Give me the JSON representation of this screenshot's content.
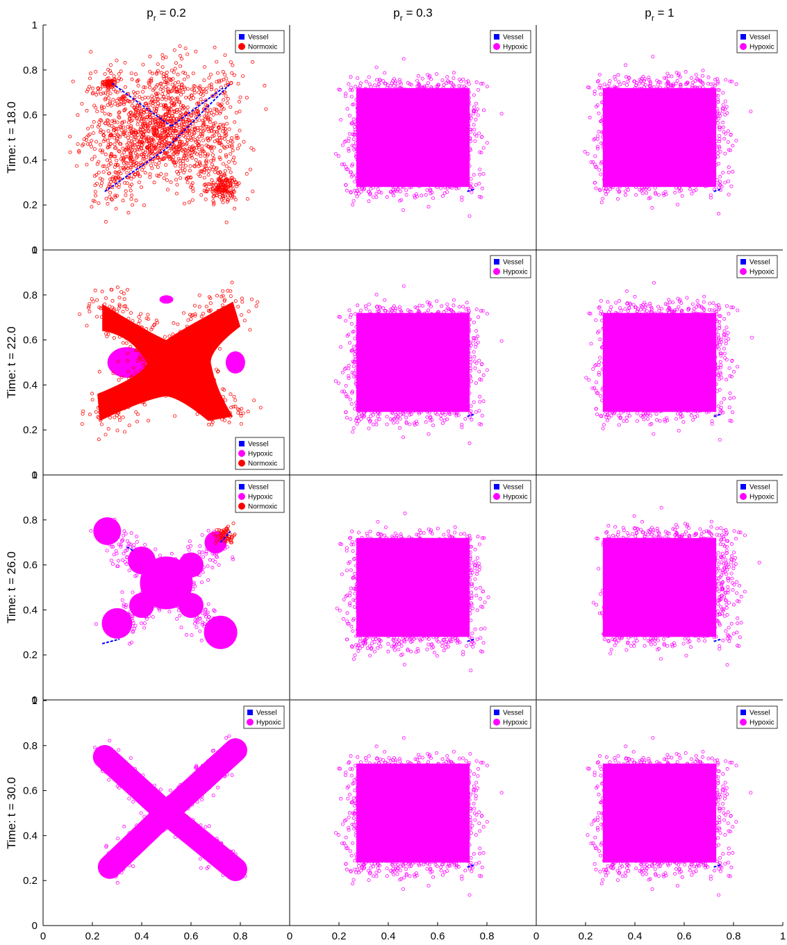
{
  "figure": {
    "column_titles": [
      {
        "base": "p",
        "sub": "r",
        "rest": " = 0.2"
      },
      {
        "base": "p",
        "sub": "r",
        "rest": " = 0.3"
      },
      {
        "base": "p",
        "sub": "r",
        "rest": " = 1"
      }
    ],
    "row_labels": [
      "Time: t = 18.0",
      "Time: t = 22.0",
      "Time: t = 26.0",
      "Time: t = 30.0"
    ],
    "colors": {
      "vessel": "#0000ff",
      "hypoxic": "#ff00ff",
      "normoxic": "#ff0000",
      "axis": "#000000"
    }
  },
  "chart_data": [
    {
      "type": "scatter",
      "row": 0,
      "col": 0,
      "xlim": [
        0,
        1
      ],
      "ylim": [
        0,
        1
      ],
      "legend": {
        "position": "top-right",
        "entries": [
          "Vessel",
          "Normoxic"
        ]
      },
      "series": [
        {
          "name": "Normoxic",
          "shape": "x-blob-dense",
          "center": [
            0.48,
            0.5
          ],
          "extent": [
            0.21,
            0.8,
            0.22,
            0.81
          ]
        },
        {
          "name": "Vessel",
          "shape": "diagonal-lines",
          "endpoints": [
            [
              0.25,
              0.26
            ],
            [
              0.76,
              0.74
            ],
            [
              0.26,
              0.74
            ],
            [
              0.73,
              0.27
            ]
          ]
        }
      ]
    },
    {
      "type": "scatter",
      "row": 0,
      "col": 1,
      "xlim": [
        0,
        1
      ],
      "ylim": [
        0,
        1
      ],
      "legend": {
        "position": "top-right",
        "entries": [
          "Vessel",
          "Hypoxic"
        ]
      },
      "series": [
        {
          "name": "Hypoxic",
          "shape": "square",
          "center": [
            0.5,
            0.5
          ],
          "extent": [
            0.17,
            0.83,
            0.17,
            0.83
          ]
        }
      ]
    },
    {
      "type": "scatter",
      "row": 0,
      "col": 2,
      "xlim": [
        0,
        1
      ],
      "ylim": [
        0,
        1
      ],
      "legend": {
        "position": "top-right",
        "entries": [
          "Vessel",
          "Hypoxic"
        ]
      },
      "series": [
        {
          "name": "Hypoxic",
          "shape": "square",
          "center": [
            0.5,
            0.5
          ],
          "extent": [
            0.17,
            0.85,
            0.17,
            0.85
          ]
        }
      ]
    },
    {
      "type": "scatter",
      "row": 1,
      "col": 0,
      "xlim": [
        0,
        1
      ],
      "ylim": [
        0,
        1
      ],
      "legend": {
        "position": "bottom-right",
        "entries": [
          "Vessel",
          "Hypoxic",
          "Normoxic"
        ]
      },
      "series": [
        {
          "name": "Normoxic",
          "shape": "x-blob-solid",
          "center": [
            0.5,
            0.5
          ],
          "extent": [
            0.2,
            0.82,
            0.2,
            0.82
          ]
        },
        {
          "name": "Hypoxic",
          "shape": "side-lobes",
          "lobes": [
            [
              0.34,
              0.5
            ],
            [
              0.78,
              0.5
            ]
          ]
        }
      ]
    },
    {
      "type": "scatter",
      "row": 1,
      "col": 1,
      "xlim": [
        0,
        1
      ],
      "ylim": [
        0,
        1
      ],
      "legend": {
        "position": "top-right",
        "entries": [
          "Vessel",
          "Hypoxic"
        ]
      },
      "series": [
        {
          "name": "Hypoxic",
          "shape": "square",
          "center": [
            0.5,
            0.5
          ],
          "extent": [
            0.17,
            0.83,
            0.14,
            0.84
          ]
        }
      ]
    },
    {
      "type": "scatter",
      "row": 1,
      "col": 2,
      "xlim": [
        0,
        1
      ],
      "ylim": [
        0,
        1
      ],
      "legend": {
        "position": "top-right",
        "entries": [
          "Vessel",
          "Hypoxic"
        ]
      },
      "series": [
        {
          "name": "Hypoxic",
          "shape": "square",
          "center": [
            0.5,
            0.5
          ],
          "extent": [
            0.15,
            0.88,
            0.17,
            0.84
          ]
        }
      ]
    },
    {
      "type": "scatter",
      "row": 2,
      "col": 0,
      "xlim": [
        0,
        1
      ],
      "ylim": [
        0,
        1
      ],
      "legend": {
        "position": "top-right",
        "entries": [
          "Vessel",
          "Hypoxic",
          "Normoxic"
        ]
      },
      "series": [
        {
          "name": "Hypoxic",
          "shape": "x-lobes",
          "center": [
            0.5,
            0.5
          ],
          "lobes": [
            [
              0.26,
              0.75
            ],
            [
              0.72,
              0.7
            ],
            [
              0.3,
              0.33
            ],
            [
              0.72,
              0.3
            ]
          ]
        },
        {
          "name": "Normoxic",
          "shape": "small-cluster",
          "center": [
            0.74,
            0.73
          ]
        },
        {
          "name": "Vessel",
          "shape": "short-lines",
          "endpoints": [
            [
              0.24,
              0.25
            ],
            [
              0.31,
              0.27
            ]
          ]
        }
      ]
    },
    {
      "type": "scatter",
      "row": 2,
      "col": 1,
      "xlim": [
        0,
        1
      ],
      "ylim": [
        0,
        1
      ],
      "legend": {
        "position": "top-right",
        "entries": [
          "Vessel",
          "Hypoxic"
        ]
      },
      "series": [
        {
          "name": "Hypoxic",
          "shape": "square",
          "center": [
            0.5,
            0.5
          ],
          "extent": [
            0.17,
            0.84,
            0.12,
            0.84
          ]
        }
      ]
    },
    {
      "type": "scatter",
      "row": 2,
      "col": 2,
      "xlim": [
        0,
        1
      ],
      "ylim": [
        0,
        1
      ],
      "legend": {
        "position": "top-right",
        "entries": [
          "Vessel",
          "Hypoxic"
        ]
      },
      "series": [
        {
          "name": "Hypoxic",
          "shape": "square",
          "center": [
            0.5,
            0.5
          ],
          "extent": [
            0.15,
            0.94,
            0.15,
            0.86
          ]
        }
      ]
    },
    {
      "type": "scatter",
      "row": 3,
      "col": 0,
      "xlim": [
        0,
        1
      ],
      "ylim": [
        0,
        1
      ],
      "legend": {
        "position": "top-right",
        "entries": [
          "Vessel",
          "Hypoxic"
        ]
      },
      "series": [
        {
          "name": "Hypoxic",
          "shape": "x-arms",
          "center": [
            0.5,
            0.5
          ],
          "endpoints": [
            [
              0.25,
              0.75
            ],
            [
              0.78,
              0.78
            ],
            [
              0.27,
              0.26
            ],
            [
              0.78,
              0.25
            ]
          ]
        }
      ]
    },
    {
      "type": "scatter",
      "row": 3,
      "col": 1,
      "xlim": [
        0,
        1
      ],
      "ylim": [
        0,
        1
      ],
      "legend": {
        "position": "top-right",
        "entries": [
          "Vessel",
          "Hypoxic"
        ]
      },
      "series": [
        {
          "name": "Hypoxic",
          "shape": "square",
          "center": [
            0.5,
            0.5
          ],
          "extent": [
            0.15,
            0.85,
            0.1,
            0.87
          ]
        }
      ]
    },
    {
      "type": "scatter",
      "row": 3,
      "col": 2,
      "xlim": [
        0,
        1
      ],
      "ylim": [
        0,
        1
      ],
      "legend": {
        "position": "top-right",
        "entries": [
          "Vessel",
          "Hypoxic"
        ]
      },
      "series": [
        {
          "name": "Hypoxic",
          "shape": "square",
          "center": [
            0.5,
            0.5
          ],
          "extent": [
            0.15,
            0.87,
            0.1,
            0.87
          ]
        }
      ]
    }
  ],
  "axes": {
    "y_ticks": [
      "0",
      "0.2",
      "0.4",
      "0.6",
      "0.8",
      "1"
    ],
    "x_ticks": [
      "0",
      "0.2",
      "0.4",
      "0.6",
      "0.8",
      "1"
    ]
  }
}
